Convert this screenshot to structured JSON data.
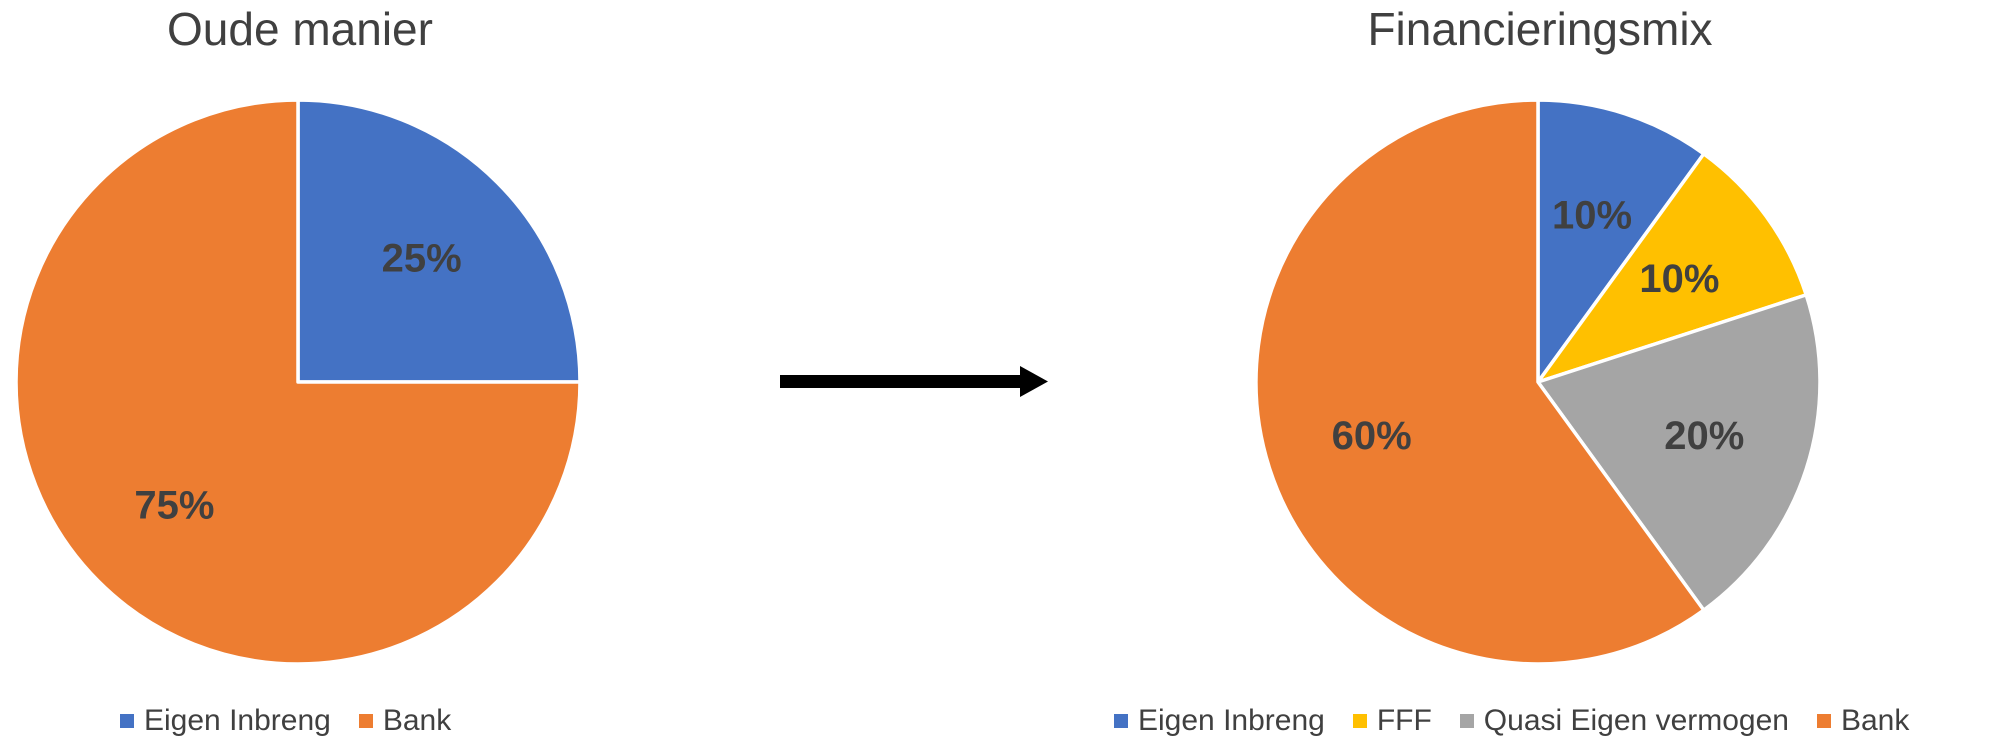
{
  "chart_data": [
    {
      "type": "pie",
      "title": "Oude manier",
      "categories": [
        "Eigen Inbreng",
        "Bank"
      ],
      "values": [
        25,
        75
      ],
      "data_labels": [
        "25%",
        "75%"
      ],
      "colors": [
        "#4472C4",
        "#ED7D31"
      ],
      "legend_position": "bottom",
      "start_angle": "12 o'clock, clockwise"
    },
    {
      "type": "pie",
      "title": "Financieringsmix",
      "categories": [
        "Eigen Inbreng",
        "FFF",
        "Quasi Eigen vermogen",
        "Bank"
      ],
      "values": [
        10,
        10,
        20,
        60
      ],
      "data_labels": [
        "10%",
        "10%",
        "20%",
        "60%"
      ],
      "colors": [
        "#4472C4",
        "#FFC000",
        "#A5A5A5",
        "#ED7D31"
      ],
      "legend_position": "bottom",
      "start_angle": "12 o'clock, clockwise"
    }
  ],
  "connector": {
    "icon": "right-arrow-icon",
    "color": "#000000"
  }
}
